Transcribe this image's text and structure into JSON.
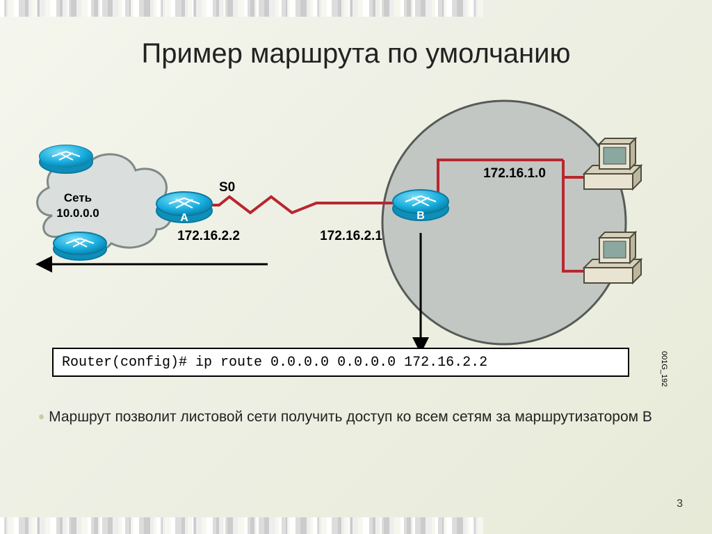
{
  "title": "Пример маршрута по умолчанию",
  "diagram": {
    "cloud_label_top": "Сеть",
    "cloud_label_ip": "10.0.0.0",
    "router_a": "A",
    "router_b": "B",
    "s0": "S0",
    "ip_left": "172.16.2.2",
    "ip_right": "172.16.2.1",
    "lan_ip": "172.16.1.0",
    "figure_id": "001G_192",
    "colors": {
      "router_fill": "#17adde",
      "router_stroke": "#0a7aa0",
      "cloud_fill": "#dadfdd",
      "cloud_stroke": "#7f8a85",
      "pc_body": "#e9e4d2",
      "pc_dark": "#4e4c3c",
      "pc_screen": "#8aa8a0",
      "link_red": "#b8272e",
      "arrow_black": "#000000",
      "big_circle_fill": "#c2c7c3",
      "big_circle_stroke": "#555b57"
    }
  },
  "command": "Router(config)# ip route 0.0.0.0 0.0.0.0 172.16.2.2",
  "bullet": "Маршрут позволит листовой сети получить доступ ко всем сетям за маршрутизатором B",
  "page_number": "3",
  "barcode": {
    "count": 140,
    "colors": [
      "#111",
      "#fff",
      "#333",
      "#eee",
      "#222",
      "#ddd",
      "#000",
      "#f7f7f0",
      "#444",
      "#ccc"
    ]
  }
}
